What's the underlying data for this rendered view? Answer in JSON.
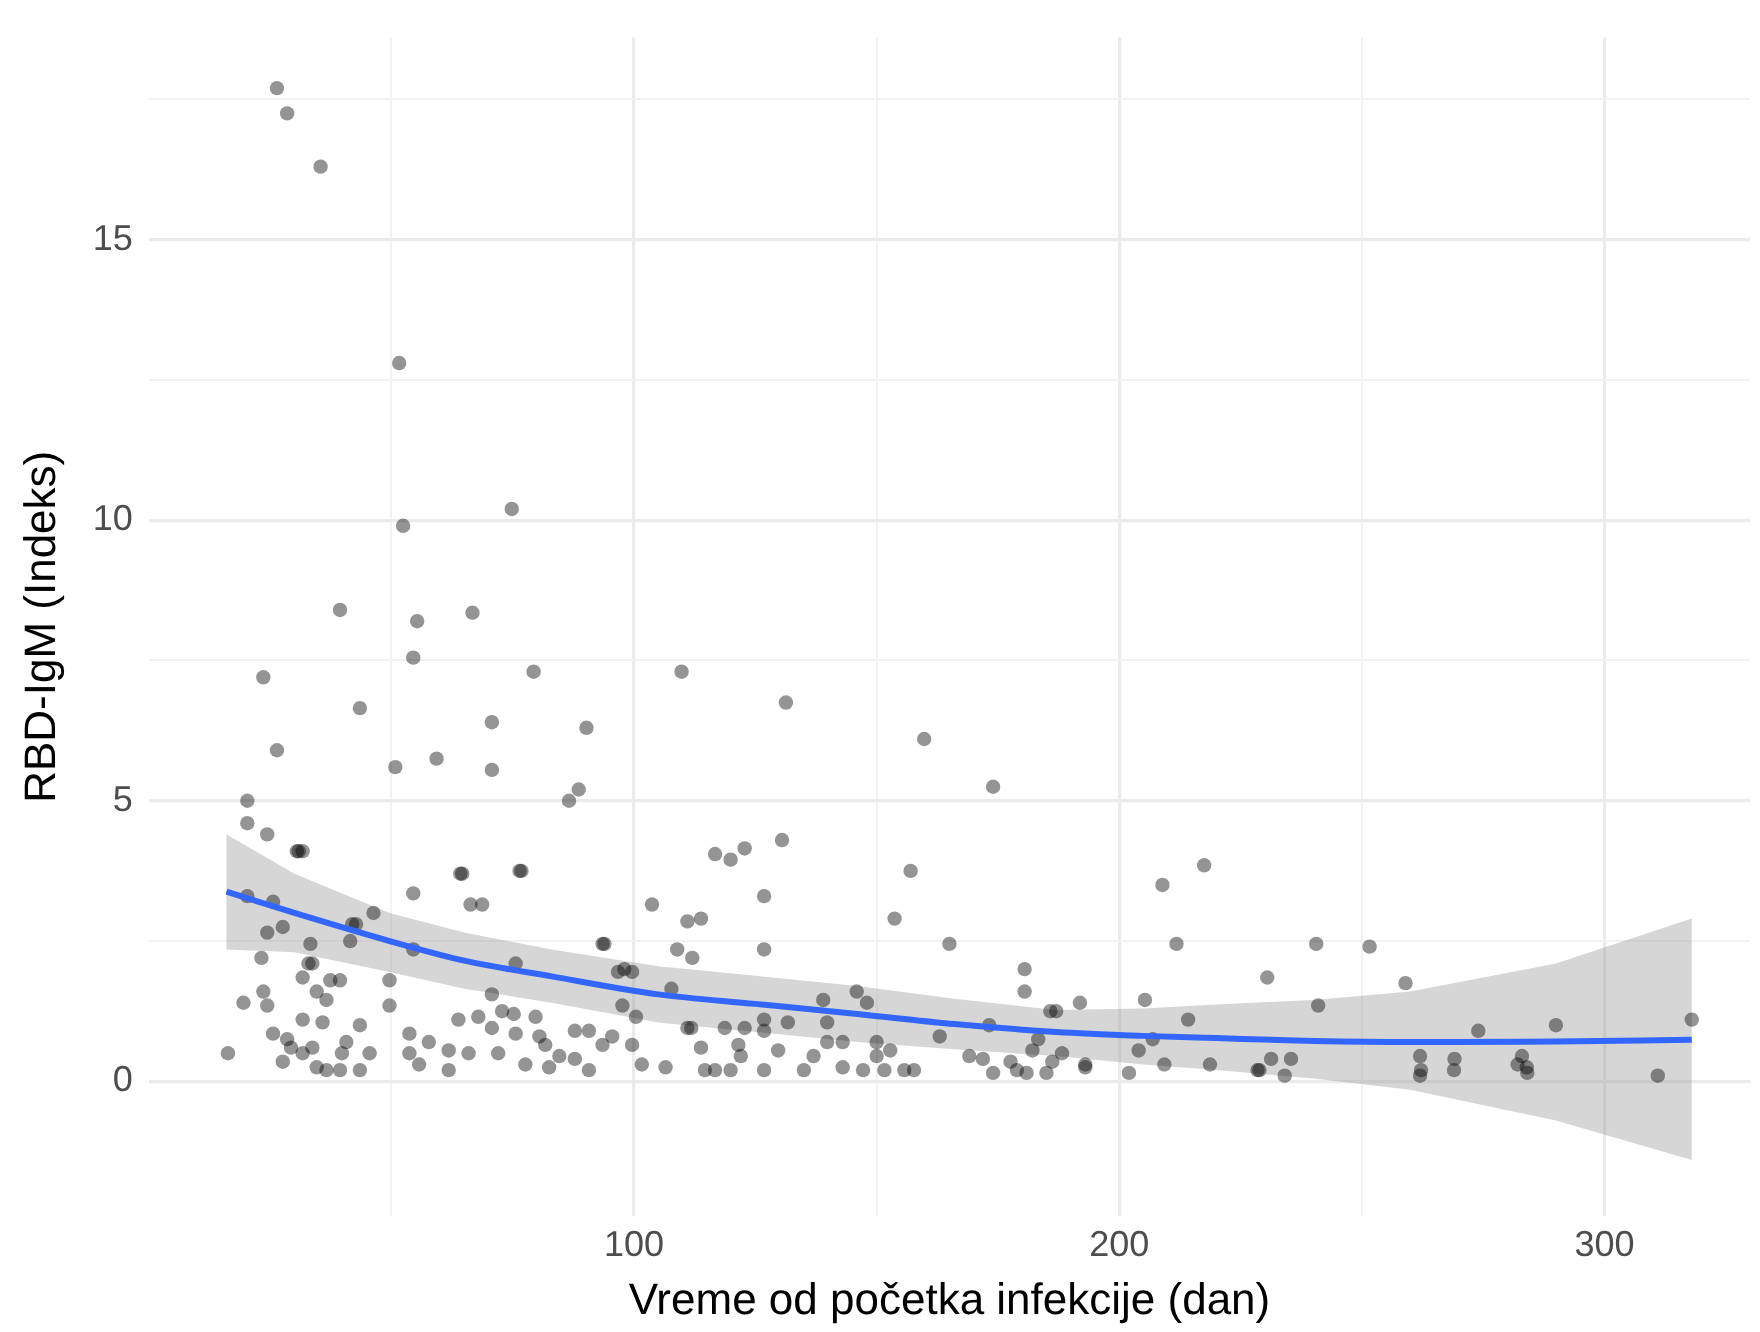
{
  "chart_data": {
    "type": "scatter",
    "xlabel": "Vreme od početka infekcije (dan)",
    "ylabel": "RBD-IgM (Indeks)",
    "xlim": [
      0,
      330
    ],
    "ylim": [
      -2.4,
      18.6
    ],
    "xticks": [
      {
        "value": 50,
        "label": null
      },
      100,
      {
        "value": 150,
        "label": null
      },
      200,
      {
        "value": 250,
        "label": null
      },
      300
    ],
    "yticks": [
      0,
      {
        "value": 2.5,
        "label": null
      },
      5,
      {
        "value": 7.5,
        "label": null
      },
      10,
      {
        "value": 12.5,
        "label": null
      },
      15,
      {
        "value": 17.5,
        "label": null
      }
    ],
    "grid": true,
    "legend": false,
    "marker": "circle",
    "series": [
      {
        "color": "#000000",
        "x": [
          26.4,
          28.5,
          35.4,
          51.6,
          52.4,
          74.8,
          23.6,
          26.4,
          20.3,
          20.3,
          24.4,
          30.5,
          31.7,
          39.4,
          43.5,
          55.3,
          54.5,
          50.8,
          59.3,
          66.7,
          70.7,
          70.7,
          79.3,
          76.8,
          64.6,
          66.3,
          90.2,
          88.6,
          86.6,
          93.5,
          98,
          109.8,
          131.3,
          159.8,
          174,
          116.7,
          119.9,
          122.8,
          130.5,
          126.8,
          126.8,
          111,
          113.8,
          112,
          157,
          165,
          153.7,
          180.5,
          180.5,
          187,
          191.9,
          208.9,
          217.5,
          211.8,
          230.5,
          240.6,
          251.6,
          241,
          259,
          274,
          290,
          318,
          262,
          262,
          269,
          283,
          284,
          311,
          16.3,
          19.5,
          23.6,
          24.4,
          25.6,
          27.6,
          28.5,
          29.3,
          31.7,
          31.7,
          32.9,
          33.7,
          34.6,
          35.8,
          31.7,
          33.7,
          34.6,
          36.6,
          39.4,
          39.8,
          40.7,
          36.6,
          37.4,
          39.4,
          33.3,
          24.4,
          27.6,
          25.6,
          20.3,
          23.2,
          41.5,
          42.7,
          46.3,
          43.5,
          45.5,
          43.5,
          49.6,
          49.6,
          53.7,
          53.7,
          55.7,
          57.7,
          61.8,
          61.8,
          63.8,
          65.9,
          67.9,
          70.7,
          70.7,
          72,
          72.8,
          75.2,
          75.6,
          75.6,
          77.6,
          79.7,
          80.5,
          81.7,
          82.5,
          84.6,
          87.8,
          87.8,
          90.7,
          90.7,
          93.5,
          95.5,
          96.7,
          99.6,
          100.4,
          97.6,
          99.6,
          101.6,
          106.5,
          107.7,
          108.9,
          93.9,
          103.7,
          111,
          30.9,
          64.2,
          76.4,
          54.5,
          68.7,
          54.5,
          41.9,
          111.8,
          113.8,
          114.6,
          116.7,
          118.7,
          119.9,
          121.5,
          122,
          122.8,
          126.8,
          126.8,
          126.8,
          129.7,
          131.7,
          135,
          137,
          139,
          139.8,
          139.8,
          143,
          143,
          145.9,
          148,
          147.2,
          150,
          150,
          151.6,
          152.8,
          155.7,
          157.7,
          163,
          169.1,
          171.9,
          173.2,
          174,
          178.9,
          177.6,
          180.9,
          182.1,
          183.3,
          185,
          185.8,
          186.2,
          188.2,
          193,
          193,
          202,
          204,
          205.3,
          206.9,
          209.3,
          214.2,
          218.7,
          228.9,
          228.5,
          231.3,
          234.1,
          235.4,
          262.2,
          269.1,
          282.1,
          284.1
        ],
        "values": [
          17.7,
          17.25,
          16.3,
          12.8,
          9.9,
          10.2,
          7.2,
          5.9,
          5.0,
          4.6,
          4.4,
          4.1,
          4.1,
          8.4,
          6.65,
          8.2,
          7.55,
          5.6,
          5.75,
          8.35,
          6.4,
          5.55,
          7.3,
          3.75,
          3.7,
          3.15,
          6.3,
          5.2,
          5.0,
          2.45,
          2.0,
          7.3,
          6.75,
          6.1,
          5.25,
          4.05,
          3.95,
          4.15,
          4.3,
          3.3,
          2.35,
          2.85,
          2.9,
          2.2,
          3.75,
          2.45,
          2.9,
          2.0,
          1.6,
          1.25,
          1.4,
          3.5,
          3.85,
          2.45,
          1.85,
          2.45,
          2.4,
          1.35,
          1.75,
          0.9,
          1.0,
          1.1,
          0.45,
          0.1,
          0.2,
          0.45,
          0.25,
          0.1,
          0.5,
          1.4,
          1.6,
          1.35,
          0.85,
          0.35,
          0.75,
          0.6,
          1.1,
          1.85,
          2.1,
          2.1,
          1.6,
          1.05,
          0.5,
          0.6,
          0.25,
          0.2,
          0.2,
          0.5,
          0.7,
          1.45,
          1.8,
          1.8,
          2.45,
          2.65,
          2.75,
          3.2,
          3.3,
          2.2,
          2.5,
          2.8,
          3.0,
          1.0,
          0.5,
          0.2,
          1.8,
          1.35,
          0.85,
          0.5,
          0.3,
          0.7,
          0.55,
          0.2,
          1.1,
          0.5,
          1.15,
          1.55,
          0.95,
          0.5,
          1.25,
          1.2,
          0.85,
          2.1,
          0.3,
          1.15,
          0.8,
          0.65,
          0.25,
          0.45,
          0.9,
          0.4,
          0.9,
          0.2,
          0.65,
          0.8,
          1.95,
          1.95,
          1.15,
          1.35,
          0.65,
          0.3,
          0.25,
          1.65,
          2.35,
          2.45,
          3.15,
          0.95,
          4.1,
          3.7,
          3.75,
          3.35,
          3.15,
          2.35,
          2.8,
          0.95,
          0.6,
          0.2,
          0.2,
          0.95,
          0.2,
          0.65,
          0.45,
          0.95,
          1.1,
          0.9,
          0.2,
          0.55,
          1.05,
          0.2,
          0.45,
          1.45,
          1.05,
          0.7,
          0.7,
          0.25,
          1.6,
          1.4,
          0.2,
          0.7,
          0.45,
          0.2,
          0.55,
          0.2,
          0.2,
          0.8,
          0.45,
          0.4,
          1.0,
          0.15,
          0.2,
          0.35,
          0.15,
          0.55,
          0.75,
          0.15,
          1.25,
          0.35,
          0.5,
          0.3,
          0.25,
          0.15,
          0.55,
          1.45,
          0.75,
          0.3,
          1.1,
          0.3,
          0.2,
          0.2,
          0.4,
          0.1,
          0.4,
          0.2,
          0.4,
          0.3,
          0.15
        ]
      },
      {
        "type": "line",
        "color": "#3366ff",
        "marker": "none",
        "x": [
          16,
          30,
          49.6,
          65,
          83,
          105,
          125,
          146,
          166,
          187,
          205,
          220,
          240,
          260,
          290,
          318
        ],
        "values": [
          3.38,
          3.0,
          2.5,
          2.15,
          1.87,
          1.55,
          1.38,
          1.2,
          1.02,
          0.88,
          0.81,
          0.77,
          0.72,
          0.7,
          0.71,
          0.74
        ],
        "lower": [
          2.35,
          2.3,
          1.95,
          1.65,
          1.4,
          1.05,
          0.88,
          0.7,
          0.57,
          0.45,
          0.3,
          0.2,
          0.05,
          -0.15,
          -0.7,
          -1.4
        ],
        "upper": [
          4.4,
          3.7,
          3.0,
          2.65,
          2.35,
          2.05,
          1.88,
          1.7,
          1.47,
          1.27,
          1.3,
          1.37,
          1.45,
          1.6,
          2.1,
          2.9
        ]
      }
    ]
  }
}
